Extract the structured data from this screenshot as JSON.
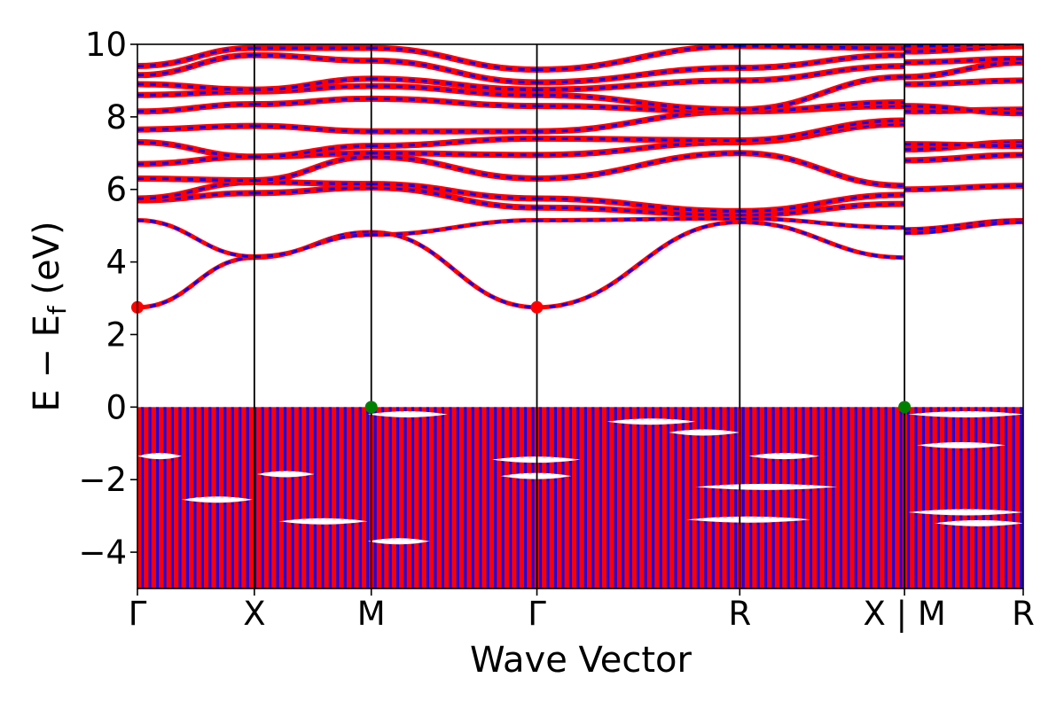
{
  "chart_data": {
    "type": "line",
    "title": "",
    "xlabel": "Wave Vector",
    "ylabel": "E − E",
    "ylabel_subscript": "f",
    "ylabel_unit": " (eV)",
    "ylim": [
      -5,
      10
    ],
    "yticks": [
      {
        "value": 10,
        "label": "10"
      },
      {
        "value": 8,
        "label": "8"
      },
      {
        "value": 6,
        "label": "6"
      },
      {
        "value": 4,
        "label": "4"
      },
      {
        "value": 2,
        "label": "2"
      },
      {
        "value": 0,
        "label": "0"
      },
      {
        "value": -2,
        "label": "−2"
      },
      {
        "value": -4,
        "label": "−4"
      }
    ],
    "xlim": [
      0,
      1
    ],
    "kpoints": [
      {
        "k": 0.0,
        "label": "Γ"
      },
      {
        "k": 0.132,
        "label": "X"
      },
      {
        "k": 0.264,
        "label": "M"
      },
      {
        "k": 0.451,
        "label": "Γ"
      },
      {
        "k": 0.68,
        "label": "R"
      },
      {
        "k": 0.866,
        "label": "X | M"
      },
      {
        "k": 1.0,
        "label": "R"
      }
    ],
    "series": [
      {
        "spin": "up",
        "color": "#0000ff"
      },
      {
        "spin": "down",
        "color": "#ff0000"
      }
    ],
    "vbm": [
      0.264,
      0.866
    ],
    "vbm_energy": 0.0,
    "vbm_color": "#008000",
    "cbm": [
      0.0,
      0.451
    ],
    "cbm_energy": 2.75,
    "cbm_color": "#ff0000",
    "conduction_bands": [
      [
        2.75,
        4.12,
        4.82,
        2.75,
        5.1,
        4.12,
        4.9,
        5.15
      ],
      [
        5.15,
        4.15,
        4.75,
        5.15,
        5.2,
        4.95,
        4.8,
        5.1
      ],
      [
        5.7,
        5.9,
        6.05,
        5.5,
        5.3,
        5.6,
        6.0,
        6.1
      ],
      [
        5.75,
        6.2,
        6.15,
        5.75,
        5.4,
        5.85,
        6.8,
        6.95
      ],
      [
        6.3,
        6.25,
        6.9,
        6.3,
        7.0,
        6.1,
        7.1,
        7.3
      ],
      [
        6.7,
        6.9,
        7.0,
        6.95,
        7.3,
        7.8,
        7.25,
        7.2
      ],
      [
        7.3,
        6.9,
        7.2,
        7.4,
        7.35,
        7.9,
        8.15,
        8.2
      ],
      [
        7.65,
        7.75,
        7.6,
        7.6,
        8.15,
        8.3,
        8.3,
        8.1
      ],
      [
        8.15,
        8.35,
        8.5,
        8.3,
        8.15,
        8.4,
        8.9,
        9.0
      ],
      [
        8.6,
        8.7,
        8.85,
        8.6,
        8.2,
        9.1,
        9.1,
        9.5
      ],
      [
        8.9,
        8.75,
        9.05,
        8.75,
        9.0,
        9.4,
        9.5,
        9.6
      ],
      [
        9.15,
        9.7,
        9.55,
        8.95,
        9.35,
        9.7,
        9.8,
        9.95
      ],
      [
        9.4,
        9.9,
        9.9,
        9.3,
        9.95,
        9.9,
        9.95,
        10.0
      ]
    ],
    "valence_range": [
      -5.0,
      0.0
    ],
    "valence_gaps": [
      {
        "k0": 0.0,
        "k1": 0.05,
        "e": -1.35
      },
      {
        "k0": 0.05,
        "k1": 0.13,
        "e": -2.55
      },
      {
        "k0": 0.135,
        "k1": 0.2,
        "e": -1.85
      },
      {
        "k0": 0.16,
        "k1": 0.26,
        "e": -3.15
      },
      {
        "k0": 0.26,
        "k1": 0.35,
        "e": -0.2
      },
      {
        "k0": 0.26,
        "k1": 0.33,
        "e": -3.7
      },
      {
        "k0": 0.4,
        "k1": 0.5,
        "e": -1.45
      },
      {
        "k0": 0.41,
        "k1": 0.49,
        "e": -1.9
      },
      {
        "k0": 0.53,
        "k1": 0.63,
        "e": -0.4
      },
      {
        "k0": 0.6,
        "k1": 0.68,
        "e": -0.7
      },
      {
        "k0": 0.63,
        "k1": 0.79,
        "e": -2.2
      },
      {
        "k0": 0.62,
        "k1": 0.76,
        "e": -3.1
      },
      {
        "k0": 0.69,
        "k1": 0.77,
        "e": -1.35
      },
      {
        "k0": 0.87,
        "k1": 1.0,
        "e": -0.2
      },
      {
        "k0": 0.87,
        "k1": 1.0,
        "e": -2.9
      },
      {
        "k0": 0.9,
        "k1": 1.0,
        "e": -3.2
      },
      {
        "k0": 0.88,
        "k1": 0.98,
        "e": -1.05
      }
    ]
  }
}
